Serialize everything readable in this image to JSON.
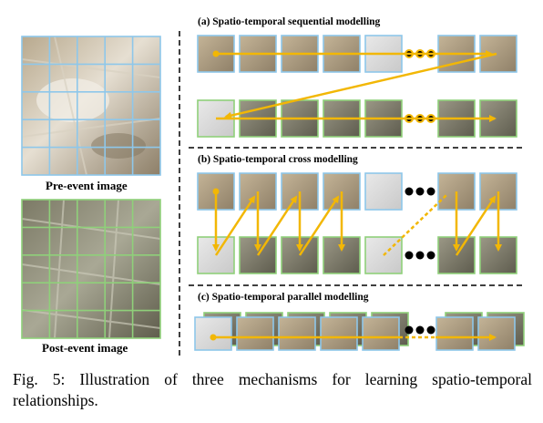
{
  "figure": {
    "pre_label": "Pre-event image",
    "post_label": "Post-event image",
    "sections": [
      {
        "title": "(a) Spatio-temporal sequential modelling"
      },
      {
        "title": "(b) Spatio-temporal cross modelling"
      },
      {
        "title": "(c) Spatio-temporal parallel modelling"
      }
    ],
    "caption_prefix": "Fig. 5:",
    "caption_text": "Illustration of three mechanisms for learning spatio-temporal relationships."
  },
  "colors": {
    "pre_border": "#8ec7ea",
    "post_border": "#8fd07a",
    "arrow": "#f2b705",
    "divider": "#000000",
    "dot": "#000000"
  }
}
